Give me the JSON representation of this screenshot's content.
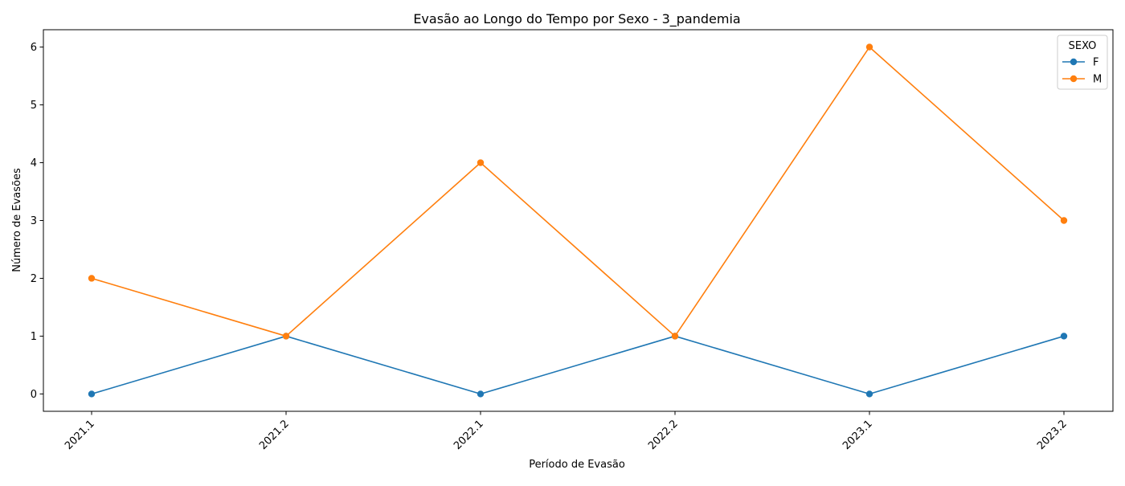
{
  "chart_data": {
    "type": "line",
    "title": "Evasão ao Longo do Tempo por Sexo - 3_pandemia",
    "xlabel": "Período de Evasão",
    "ylabel": "Número de Evasões",
    "categories": [
      "2021.1",
      "2021.2",
      "2022.1",
      "2022.2",
      "2023.1",
      "2023.2"
    ],
    "ylim": [
      -0.3,
      6.3
    ],
    "yticks": [
      0,
      1,
      2,
      3,
      4,
      5,
      6
    ],
    "grid": false,
    "legend": {
      "title": "SEXO",
      "placement": "top-right"
    },
    "series": [
      {
        "name": "F",
        "color": "#1f77b4",
        "marker": "circle",
        "values": [
          0,
          1,
          0,
          1,
          0,
          1
        ]
      },
      {
        "name": "M",
        "color": "#ff7f0e",
        "marker": "circle",
        "values": [
          2,
          1,
          4,
          1,
          6,
          3
        ]
      }
    ]
  }
}
